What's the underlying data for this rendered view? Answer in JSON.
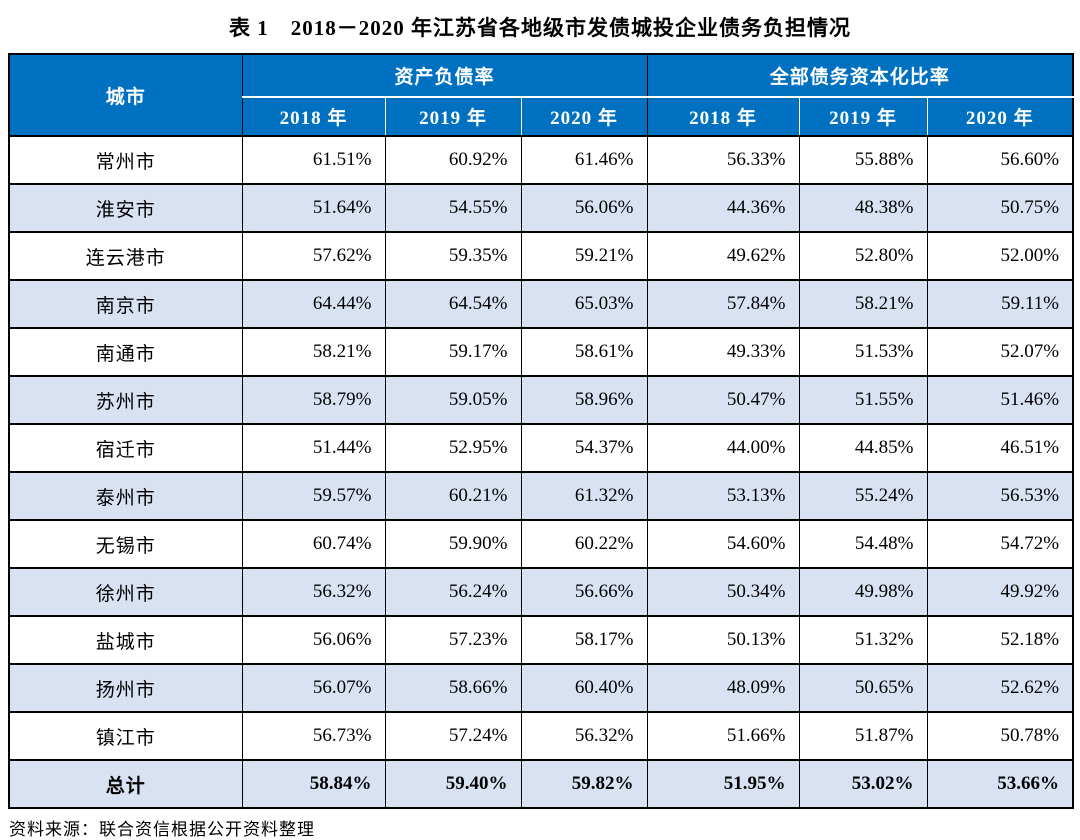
{
  "title": "表 1　2018－2020 年江苏省各地级市发债城投企业债务负担情况",
  "source_note": "资料来源：联合资信根据公开资料整理",
  "colors": {
    "header_bg": "#0070c0",
    "stripe_bg": "#d9e2f3",
    "border": "#000000",
    "header_text": "#ffffff"
  },
  "table": {
    "header": {
      "city_label": "城市",
      "groups": [
        {
          "label": "资产负债率",
          "years": [
            "2018 年",
            "2019 年",
            "2020 年"
          ]
        },
        {
          "label": "全部债务资本化比率",
          "years": [
            "2018 年",
            "2019 年",
            "2020 年"
          ]
        }
      ]
    },
    "rows": [
      {
        "city": "常州市",
        "values": [
          "61.51%",
          "60.92%",
          "61.46%",
          "56.33%",
          "55.88%",
          "56.60%"
        ]
      },
      {
        "city": "淮安市",
        "values": [
          "51.64%",
          "54.55%",
          "56.06%",
          "44.36%",
          "48.38%",
          "50.75%"
        ]
      },
      {
        "city": "连云港市",
        "values": [
          "57.62%",
          "59.35%",
          "59.21%",
          "49.62%",
          "52.80%",
          "52.00%"
        ]
      },
      {
        "city": "南京市",
        "values": [
          "64.44%",
          "64.54%",
          "65.03%",
          "57.84%",
          "58.21%",
          "59.11%"
        ]
      },
      {
        "city": "南通市",
        "values": [
          "58.21%",
          "59.17%",
          "58.61%",
          "49.33%",
          "51.53%",
          "52.07%"
        ]
      },
      {
        "city": "苏州市",
        "values": [
          "58.79%",
          "59.05%",
          "58.96%",
          "50.47%",
          "51.55%",
          "51.46%"
        ]
      },
      {
        "city": "宿迁市",
        "values": [
          "51.44%",
          "52.95%",
          "54.37%",
          "44.00%",
          "44.85%",
          "46.51%"
        ]
      },
      {
        "city": "泰州市",
        "values": [
          "59.57%",
          "60.21%",
          "61.32%",
          "53.13%",
          "55.24%",
          "56.53%"
        ]
      },
      {
        "city": "无锡市",
        "values": [
          "60.74%",
          "59.90%",
          "60.22%",
          "54.60%",
          "54.48%",
          "54.72%"
        ]
      },
      {
        "city": "徐州市",
        "values": [
          "56.32%",
          "56.24%",
          "56.66%",
          "50.34%",
          "49.98%",
          "49.92%"
        ]
      },
      {
        "city": "盐城市",
        "values": [
          "56.06%",
          "57.23%",
          "58.17%",
          "50.13%",
          "51.32%",
          "52.18%"
        ]
      },
      {
        "city": "扬州市",
        "values": [
          "56.07%",
          "58.66%",
          "60.40%",
          "48.09%",
          "50.65%",
          "52.62%"
        ]
      },
      {
        "city": "镇江市",
        "values": [
          "56.73%",
          "57.24%",
          "56.32%",
          "51.66%",
          "51.87%",
          "50.78%"
        ]
      },
      {
        "city": "总计",
        "is_total": true,
        "values": [
          "58.84%",
          "59.40%",
          "59.82%",
          "51.95%",
          "53.02%",
          "53.66%"
        ]
      }
    ]
  },
  "chart_data": {
    "type": "table",
    "title": "表 1　2018－2020 年江苏省各地级市发债城投企业债务负担情况",
    "columns": [
      "城市",
      "资产负债率 2018年",
      "资产负债率 2019年",
      "资产负债率 2020年",
      "全部债务资本化比率 2018年",
      "全部债务资本化比率 2019年",
      "全部债务资本化比率 2020年"
    ],
    "rows": [
      [
        "常州市",
        61.51,
        60.92,
        61.46,
        56.33,
        55.88,
        56.6
      ],
      [
        "淮安市",
        51.64,
        54.55,
        56.06,
        44.36,
        48.38,
        50.75
      ],
      [
        "连云港市",
        57.62,
        59.35,
        59.21,
        49.62,
        52.8,
        52.0
      ],
      [
        "南京市",
        64.44,
        64.54,
        65.03,
        57.84,
        58.21,
        59.11
      ],
      [
        "南通市",
        58.21,
        59.17,
        58.61,
        49.33,
        51.53,
        52.07
      ],
      [
        "苏州市",
        58.79,
        59.05,
        58.96,
        50.47,
        51.55,
        51.46
      ],
      [
        "宿迁市",
        51.44,
        52.95,
        54.37,
        44.0,
        44.85,
        46.51
      ],
      [
        "泰州市",
        59.57,
        60.21,
        61.32,
        53.13,
        55.24,
        56.53
      ],
      [
        "无锡市",
        60.74,
        59.9,
        60.22,
        54.6,
        54.48,
        54.72
      ],
      [
        "徐州市",
        56.32,
        56.24,
        56.66,
        50.34,
        49.98,
        49.92
      ],
      [
        "盐城市",
        56.06,
        57.23,
        58.17,
        50.13,
        51.32,
        52.18
      ],
      [
        "扬州市",
        56.07,
        58.66,
        60.4,
        48.09,
        50.65,
        52.62
      ],
      [
        "镇江市",
        56.73,
        57.24,
        56.32,
        51.66,
        51.87,
        50.78
      ],
      [
        "总计",
        58.84,
        59.4,
        59.82,
        51.95,
        53.02,
        53.66
      ]
    ],
    "unit": "%"
  }
}
